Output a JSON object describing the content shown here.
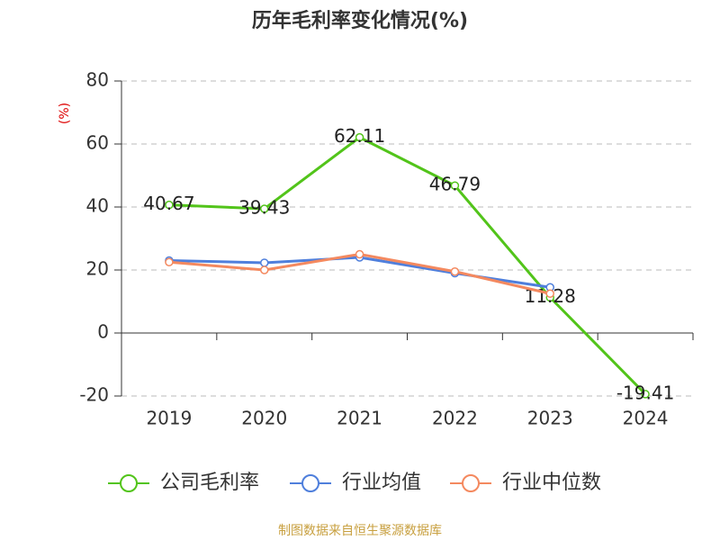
{
  "chart_data": {
    "type": "line",
    "title": "历年毛利率变化情况(%)",
    "y_label": "(%)",
    "categories": [
      "2019",
      "2020",
      "2021",
      "2022",
      "2023",
      "2024"
    ],
    "series": [
      {
        "name": "公司毛利率",
        "color": "#52c41a",
        "values": [
          40.67,
          39.43,
          62.11,
          46.79,
          11.28,
          -19.41
        ],
        "labels": true
      },
      {
        "name": "行业均值",
        "color": "#4f7fdc",
        "values": [
          23,
          22.3,
          24,
          19,
          14.5,
          null
        ]
      },
      {
        "name": "行业中位数",
        "color": "#f4895f",
        "values": [
          22.5,
          20,
          25,
          19.5,
          12.5,
          null
        ]
      }
    ],
    "ylim": [
      -20,
      80
    ],
    "yticks": [
      -20,
      0,
      20,
      40,
      60,
      80
    ],
    "grid": true,
    "source": "制图数据来自恒生聚源数据库"
  }
}
